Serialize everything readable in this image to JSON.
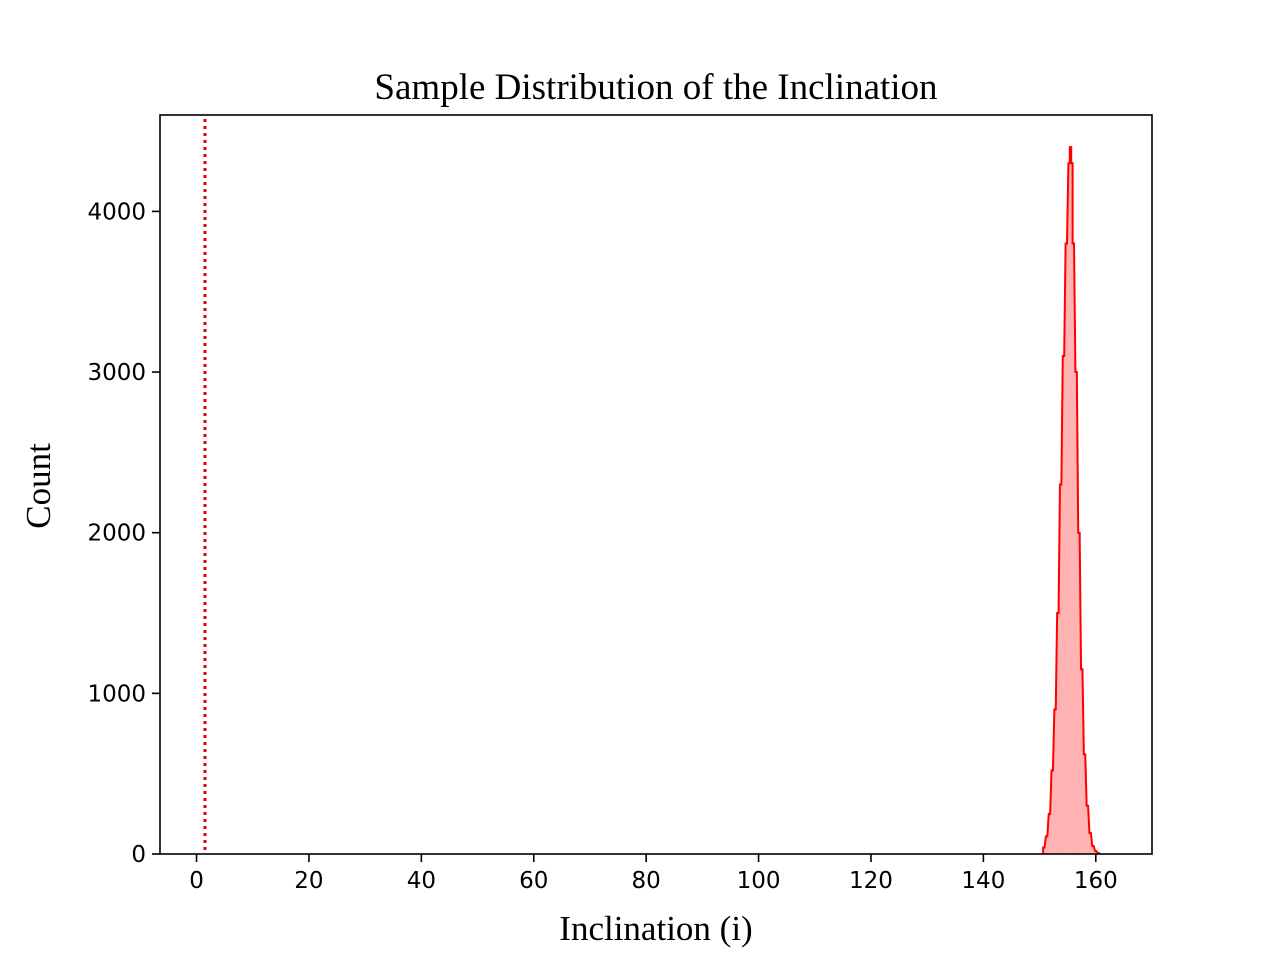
{
  "chart_data": {
    "type": "histogram",
    "title": "Sample Distribution of the Inclination",
    "xlabel": "Inclination (i)",
    "ylabel": "Count",
    "xlim": [
      -6.5,
      170
    ],
    "ylim": [
      0,
      4600
    ],
    "xticks": [
      0,
      20,
      40,
      60,
      80,
      100,
      120,
      140,
      160
    ],
    "yticks": [
      0,
      1000,
      2000,
      3000,
      4000
    ],
    "grid": false,
    "colors": {
      "hist_edge": "#ff0000",
      "hist_fill": "#ffb3b3",
      "reference_line": "#e00000"
    },
    "reference_line": {
      "x": 1.5,
      "style": "dotted"
    },
    "histogram": {
      "bin_width": 0.25,
      "bins": [
        [
          150.75,
          40
        ],
        [
          151.25,
          110
        ],
        [
          151.75,
          250
        ],
        [
          152.25,
          520
        ],
        [
          152.75,
          900
        ],
        [
          153.25,
          1500
        ],
        [
          153.75,
          2300
        ],
        [
          154.25,
          3100
        ],
        [
          154.75,
          3800
        ],
        [
          155.25,
          4300
        ],
        [
          155.5,
          4400
        ],
        [
          155.75,
          4300
        ],
        [
          156.0,
          3800
        ],
        [
          156.5,
          3000
        ],
        [
          157.0,
          2000
        ],
        [
          157.5,
          1150
        ],
        [
          158.0,
          620
        ],
        [
          158.5,
          300
        ],
        [
          159.0,
          130
        ],
        [
          159.5,
          50
        ],
        [
          160.0,
          18
        ],
        [
          160.5,
          5
        ]
      ]
    }
  }
}
